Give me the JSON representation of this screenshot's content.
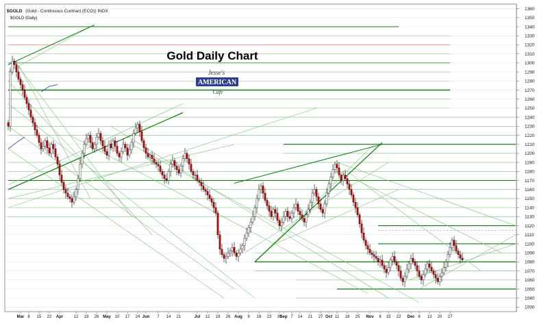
{
  "header": {
    "symbol": "$GOLD",
    "description": "(Gold - Continuous Contract (ECO)) INDX",
    "series_label": "$GOLD (Daily)"
  },
  "logo": {
    "line1": "Jesse's",
    "line2": "AMERICAN",
    "line3": "Cafe"
  },
  "colors": {
    "up_candle": "#ffffff",
    "down_candle": "#dd0000",
    "candle_outline": "#000000",
    "trendline_light": "#7cc07c",
    "trendline_dark": "#0b7a0b",
    "resistance_red": "#e87070",
    "grid": "#d8d8d8",
    "dashed_level": "#9a9a9a",
    "ma_blue": "#2233cc"
  },
  "chart_data": {
    "type": "candlestick",
    "title": "Gold Daily Chart",
    "ylim": [
      1025,
      1365
    ],
    "y_axis_side": "right",
    "y_ticks": [
      1030,
      1040,
      1050,
      1060,
      1070,
      1080,
      1090,
      1100,
      1110,
      1120,
      1130,
      1140,
      1150,
      1160,
      1170,
      1180,
      1190,
      1200,
      1210,
      1220,
      1230,
      1240,
      1250,
      1260,
      1270,
      1280,
      1290,
      1300,
      1310,
      1320,
      1330,
      1340,
      1350,
      1360
    ],
    "x_ticks": [
      {
        "label": "Mar",
        "i": 6,
        "month": true
      },
      {
        "label": "8",
        "i": 10
      },
      {
        "label": "15",
        "i": 15
      },
      {
        "label": "22",
        "i": 20
      },
      {
        "label": "Apr",
        "i": 25,
        "month": true
      },
      {
        "label": "12",
        "i": 33
      },
      {
        "label": "19",
        "i": 38
      },
      {
        "label": "26",
        "i": 43
      },
      {
        "label": "May",
        "i": 48,
        "month": true
      },
      {
        "label": "10",
        "i": 53
      },
      {
        "label": "17",
        "i": 58
      },
      {
        "label": "24",
        "i": 63
      },
      {
        "label": "Jun",
        "i": 67,
        "month": true
      },
      {
        "label": "7",
        "i": 73
      },
      {
        "label": "14",
        "i": 78
      },
      {
        "label": "21",
        "i": 83
      },
      {
        "label": "Jul",
        "i": 92,
        "month": true
      },
      {
        "label": "12",
        "i": 97
      },
      {
        "label": "19",
        "i": 102
      },
      {
        "label": "26",
        "i": 107
      },
      {
        "label": "Aug",
        "i": 112,
        "month": true
      },
      {
        "label": "9",
        "i": 117
      },
      {
        "label": "16",
        "i": 122
      },
      {
        "label": "23",
        "i": 127
      },
      {
        "label": "30",
        "i": 132
      },
      {
        "label": "Sep",
        "i": 134,
        "month": true
      },
      {
        "label": "7",
        "i": 138
      },
      {
        "label": "14",
        "i": 142
      },
      {
        "label": "21",
        "i": 147
      },
      {
        "label": "27",
        "i": 152
      },
      {
        "label": "Oct",
        "i": 156,
        "month": true
      },
      {
        "label": "11",
        "i": 160
      },
      {
        "label": "18",
        "i": 165
      },
      {
        "label": "25",
        "i": 170
      },
      {
        "label": "Nov",
        "i": 176,
        "month": true
      },
      {
        "label": "8",
        "i": 181
      },
      {
        "label": "15",
        "i": 185
      },
      {
        "label": "22",
        "i": 190
      },
      {
        "label": "Dec",
        "i": 196,
        "month": true
      },
      {
        "label": "6",
        "i": 200
      },
      {
        "label": "13",
        "i": 205
      },
      {
        "label": "20",
        "i": 210
      },
      {
        "label": "27",
        "i": 215
      }
    ],
    "closes": [
      1230,
      1290,
      1302,
      1298,
      1290,
      1282,
      1276,
      1270,
      1262,
      1255,
      1248,
      1240,
      1234,
      1226,
      1220,
      1212,
      1205,
      1208,
      1214,
      1206,
      1200,
      1210,
      1205,
      1196,
      1188,
      1176,
      1168,
      1160,
      1156,
      1152,
      1150,
      1146,
      1152,
      1160,
      1172,
      1188,
      1200,
      1210,
      1216,
      1220,
      1212,
      1205,
      1210,
      1218,
      1222,
      1214,
      1208,
      1202,
      1198,
      1210,
      1206,
      1214,
      1208,
      1200,
      1196,
      1202,
      1210,
      1206,
      1198,
      1204,
      1212,
      1222,
      1228,
      1232,
      1224,
      1214,
      1206,
      1200,
      1196,
      1198,
      1194,
      1190,
      1188,
      1186,
      1180,
      1176,
      1172,
      1170,
      1180,
      1188,
      1192,
      1186,
      1182,
      1178,
      1186,
      1194,
      1200,
      1194,
      1188,
      1180,
      1176,
      1176,
      1170,
      1168,
      1164,
      1160,
      1158,
      1154,
      1150,
      1146,
      1140,
      1134,
      1110,
      1094,
      1088,
      1084,
      1086,
      1090,
      1092,
      1096,
      1090,
      1086,
      1090,
      1094,
      1098,
      1106,
      1112,
      1118,
      1124,
      1130,
      1140,
      1150,
      1160,
      1164,
      1156,
      1148,
      1142,
      1136,
      1130,
      1138,
      1134,
      1126,
      1120,
      1124,
      1130,
      1136,
      1130,
      1128,
      1134,
      1140,
      1144,
      1136,
      1132,
      1128,
      1124,
      1132,
      1138,
      1146,
      1156,
      1160,
      1152,
      1144,
      1138,
      1134,
      1144,
      1156,
      1166,
      1174,
      1182,
      1188,
      1184,
      1176,
      1170,
      1176,
      1172,
      1166,
      1160,
      1154,
      1146,
      1140,
      1132,
      1122,
      1112,
      1104,
      1098,
      1094,
      1090,
      1088,
      1086,
      1084,
      1080,
      1082,
      1076,
      1072,
      1068,
      1074,
      1082,
      1086,
      1080,
      1076,
      1070,
      1062,
      1058,
      1064,
      1072,
      1078,
      1084,
      1080,
      1076,
      1070,
      1064,
      1060,
      1066,
      1072,
      1078,
      1074,
      1070,
      1066,
      1062,
      1058,
      1064,
      1068,
      1074,
      1080,
      1088,
      1096,
      1104,
      1098,
      1092,
      1088,
      1084,
      1082
    ]
  }
}
